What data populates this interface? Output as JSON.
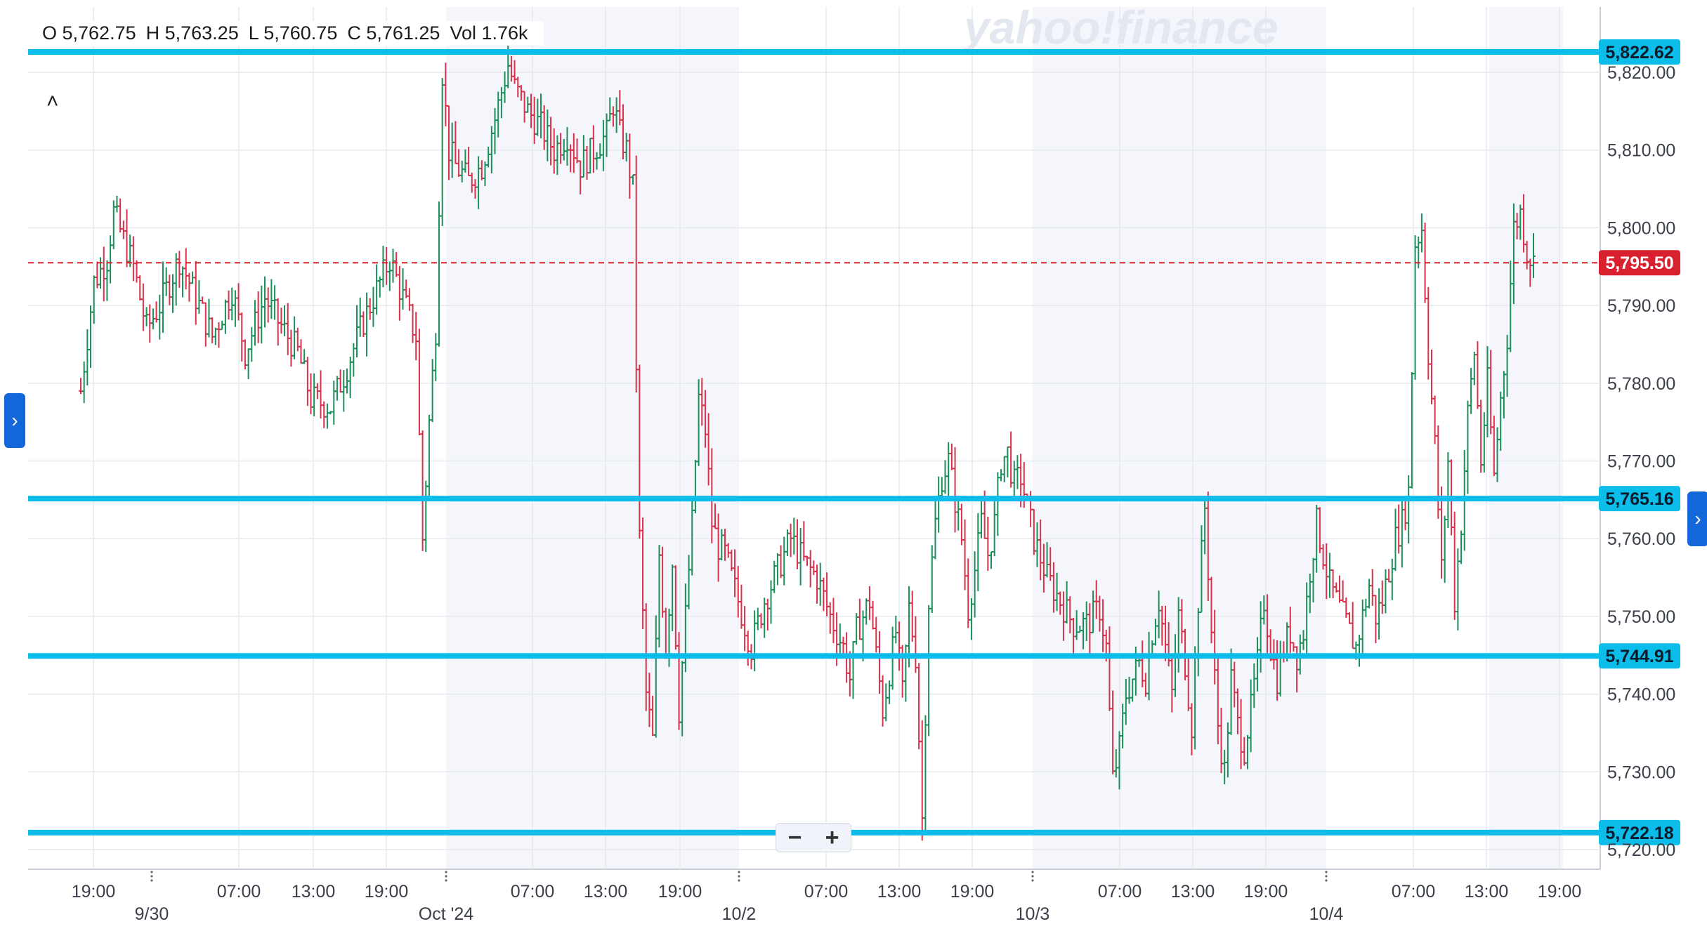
{
  "ohlc": {
    "open": "O 5,762.75",
    "high": "H 5,763.25",
    "low": "L 5,760.75",
    "close": "C 5,761.25",
    "volume": "Vol 1.76k"
  },
  "watermark": "yahoo!finance",
  "colors": {
    "up": "#1a8f5a",
    "down": "#d9314a",
    "hline": "#0bbde8",
    "last_price": "#d8202f",
    "accent": "#1467d8"
  },
  "icons": {
    "left_tab": "chevron-right-icon",
    "right_tab": "chevron-right-icon",
    "collapse": "chevron-up-icon"
  },
  "zoom": {
    "minus": "−",
    "plus": "+"
  },
  "chart_data": {
    "type": "candlestick",
    "ylim": [
      5718,
      5825
    ],
    "yticks": [
      5720,
      5730,
      5740,
      5750,
      5760,
      5770,
      5780,
      5790,
      5800,
      5810,
      5820
    ],
    "ytick_labels": [
      "5,720.00",
      "5,730.00",
      "5,740.00",
      "5,750.00",
      "5,760.00",
      "5,770.00",
      "5,780.00",
      "5,790.00",
      "5,800.00",
      "5,810.00",
      "5,820.00"
    ],
    "time_labels": [
      "19:00",
      "07:00",
      "13:00",
      "19:00",
      "07:00",
      "13:00",
      "19:00",
      "07:00",
      "13:00",
      "19:00",
      "07:00",
      "13:00",
      "19:00",
      "07:00",
      "13:00",
      "19:00"
    ],
    "date_labels": [
      "9/30",
      "Oct '24",
      "10/2",
      "10/3",
      "10/4"
    ],
    "horizontal_lines": [
      {
        "value": 5822.62,
        "label": "5,822.62"
      },
      {
        "value": 5765.16,
        "label": "5,765.16"
      },
      {
        "value": 5744.91,
        "label": "5,744.91"
      },
      {
        "value": 5722.18,
        "label": "5,722.18"
      }
    ],
    "last_price": {
      "value": 5795.5,
      "label": "5,795.50"
    },
    "price_path": [
      [
        0,
        5779
      ],
      [
        2,
        5793
      ],
      [
        4,
        5796
      ],
      [
        5,
        5802
      ],
      [
        8,
        5795
      ],
      [
        10,
        5787
      ],
      [
        12,
        5790
      ],
      [
        15,
        5796
      ],
      [
        18,
        5790
      ],
      [
        20,
        5786
      ],
      [
        23,
        5792
      ],
      [
        25,
        5784
      ],
      [
        28,
        5791
      ],
      [
        30,
        5788
      ],
      [
        33,
        5784
      ],
      [
        35,
        5778
      ],
      [
        38,
        5777
      ],
      [
        40,
        5781
      ],
      [
        43,
        5788
      ],
      [
        45,
        5792
      ],
      [
        47,
        5796
      ],
      [
        49,
        5791
      ],
      [
        51,
        5786
      ],
      [
        52,
        5760
      ],
      [
        53,
        5775
      ],
      [
        54,
        5787
      ],
      [
        55,
        5820
      ],
      [
        56,
        5810
      ],
      [
        57,
        5808
      ],
      [
        59,
        5806
      ],
      [
        61,
        5808
      ],
      [
        63,
        5814
      ],
      [
        65,
        5821
      ],
      [
        66,
        5818
      ],
      [
        68,
        5815
      ],
      [
        70,
        5813
      ],
      [
        72,
        5810
      ],
      [
        74,
        5812
      ],
      [
        76,
        5808
      ],
      [
        78,
        5810
      ],
      [
        80,
        5812
      ],
      [
        81,
        5816
      ],
      [
        82,
        5812
      ],
      [
        83,
        5810
      ],
      [
        84,
        5805
      ],
      [
        85,
        5760
      ],
      [
        86,
        5740
      ],
      [
        87,
        5734
      ],
      [
        88,
        5758
      ],
      [
        89,
        5746
      ],
      [
        90,
        5757
      ],
      [
        91,
        5738
      ],
      [
        92,
        5750
      ],
      [
        93,
        5762
      ],
      [
        94,
        5778
      ],
      [
        95,
        5774
      ],
      [
        96,
        5762
      ],
      [
        97,
        5759
      ],
      [
        98,
        5758
      ],
      [
        100,
        5752
      ],
      [
        102,
        5746
      ],
      [
        104,
        5752
      ],
      [
        106,
        5756
      ],
      [
        108,
        5760
      ],
      [
        110,
        5757
      ],
      [
        112,
        5755
      ],
      [
        114,
        5750
      ],
      [
        116,
        5746
      ],
      [
        117,
        5742
      ],
      [
        118,
        5748
      ],
      [
        120,
        5752
      ],
      [
        121,
        5745
      ],
      [
        122,
        5738
      ],
      [
        124,
        5748
      ],
      [
        125,
        5740
      ],
      [
        126,
        5751
      ],
      [
        127,
        5745
      ],
      [
        128,
        5724
      ],
      [
        129,
        5752
      ],
      [
        130,
        5762
      ],
      [
        131,
        5768
      ],
      [
        132,
        5770
      ],
      [
        133,
        5765
      ],
      [
        134,
        5760
      ],
      [
        135,
        5751
      ],
      [
        136,
        5756
      ],
      [
        137,
        5762
      ],
      [
        138,
        5758
      ],
      [
        139,
        5762
      ],
      [
        140,
        5770
      ],
      [
        141,
        5771
      ],
      [
        142,
        5767
      ],
      [
        143,
        5768
      ],
      [
        145,
        5760
      ],
      [
        147,
        5755
      ],
      [
        149,
        5752
      ],
      [
        151,
        5749
      ],
      [
        153,
        5749
      ],
      [
        155,
        5751
      ],
      [
        156,
        5746
      ],
      [
        157,
        5729
      ],
      [
        158,
        5733
      ],
      [
        159,
        5740
      ],
      [
        160,
        5742
      ],
      [
        161,
        5744
      ],
      [
        162,
        5742
      ],
      [
        163,
        5748
      ],
      [
        164,
        5752
      ],
      [
        165,
        5746
      ],
      [
        166,
        5740
      ],
      [
        167,
        5750
      ],
      [
        168,
        5744
      ],
      [
        169,
        5736
      ],
      [
        170,
        5752
      ],
      [
        171,
        5764
      ],
      [
        172,
        5748
      ],
      [
        173,
        5736
      ],
      [
        174,
        5730
      ],
      [
        175,
        5742
      ],
      [
        176,
        5736
      ],
      [
        177,
        5733
      ],
      [
        178,
        5738
      ],
      [
        179,
        5744
      ],
      [
        180,
        5752
      ],
      [
        181,
        5746
      ],
      [
        182,
        5742
      ],
      [
        183,
        5746
      ],
      [
        184,
        5748
      ],
      [
        185,
        5745
      ],
      [
        186,
        5748
      ],
      [
        187,
        5756
      ],
      [
        188,
        5762
      ],
      [
        189,
        5758
      ],
      [
        190,
        5754
      ],
      [
        191,
        5752
      ],
      [
        192,
        5750
      ],
      [
        193,
        5748
      ],
      [
        194,
        5746
      ],
      [
        195,
        5750
      ],
      [
        196,
        5754
      ],
      [
        197,
        5750
      ],
      [
        198,
        5752
      ],
      [
        199,
        5756
      ],
      [
        200,
        5760
      ],
      [
        201,
        5762
      ],
      [
        202,
        5766
      ],
      [
        203,
        5798
      ],
      [
        204,
        5800
      ],
      [
        205,
        5784
      ],
      [
        206,
        5772
      ],
      [
        207,
        5756
      ],
      [
        208,
        5770
      ],
      [
        209,
        5752
      ],
      [
        210,
        5762
      ],
      [
        211,
        5776
      ],
      [
        212,
        5784
      ],
      [
        213,
        5770
      ],
      [
        214,
        5780
      ],
      [
        215,
        5768
      ],
      [
        216,
        5778
      ],
      [
        217,
        5786
      ],
      [
        218,
        5800
      ],
      [
        219,
        5802
      ],
      [
        220,
        5797
      ],
      [
        221,
        5795.5
      ]
    ]
  }
}
